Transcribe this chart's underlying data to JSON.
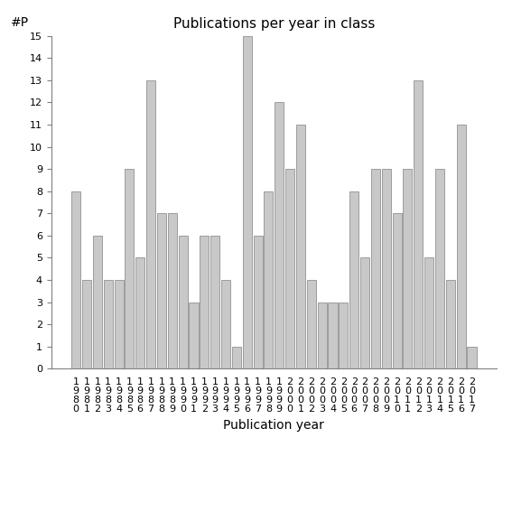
{
  "title": "Publications per year in class",
  "xlabel": "Publication year",
  "ylabel": "#P",
  "years": [
    "1980",
    "1981",
    "1982",
    "1983",
    "1984",
    "1985",
    "1986",
    "1987",
    "1988",
    "1989",
    "1990",
    "1991",
    "1992",
    "1993",
    "1994",
    "1995",
    "1996",
    "1997",
    "1998",
    "1999",
    "2000",
    "2001",
    "2002",
    "2003",
    "2004",
    "2005",
    "2006",
    "2007",
    "2008",
    "2009",
    "2010",
    "2011",
    "2012",
    "2013",
    "2014",
    "2015",
    "2016",
    "2017"
  ],
  "values": [
    8,
    4,
    6,
    4,
    4,
    9,
    5,
    13,
    7,
    7,
    6,
    3,
    6,
    6,
    4,
    1,
    15,
    6,
    8,
    12,
    9,
    11,
    4,
    3,
    3,
    3,
    8,
    5,
    9,
    9,
    7,
    9,
    13,
    5,
    9,
    4,
    11,
    1
  ],
  "bar_color": "#c8c8c8",
  "bar_edge_color": "#808080",
  "ylim": [
    0,
    15
  ],
  "yticks": [
    0,
    1,
    2,
    3,
    4,
    5,
    6,
    7,
    8,
    9,
    10,
    11,
    12,
    13,
    14,
    15
  ],
  "title_fontsize": 11,
  "label_fontsize": 10,
  "tick_fontsize": 8,
  "bg_color": "#ffffff"
}
